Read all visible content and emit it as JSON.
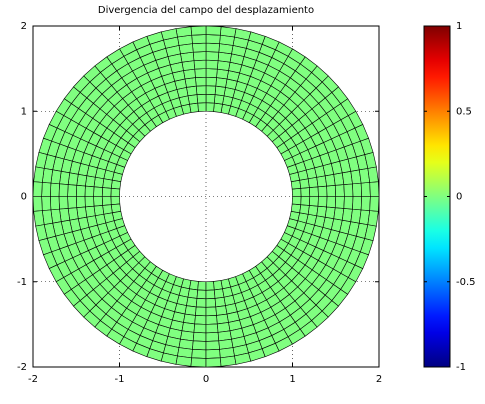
{
  "chart_data": {
    "type": "annulus-mesh",
    "title": "Divergencia del campo del desplazamiento",
    "inner_radius": 1,
    "outer_radius": 2,
    "rings": 10,
    "sectors": 72,
    "value": 0,
    "colormap": "jet",
    "xlim": [
      -2,
      2
    ],
    "ylim": [
      -2,
      2
    ],
    "xticks": [
      -2,
      -1,
      0,
      1,
      2
    ],
    "yticks": [
      -2,
      -1,
      0,
      1,
      2
    ],
    "grid": true,
    "clim": [
      -1,
      1
    ],
    "cticks": [
      -1,
      -0.5,
      0,
      0.5,
      1
    ]
  }
}
